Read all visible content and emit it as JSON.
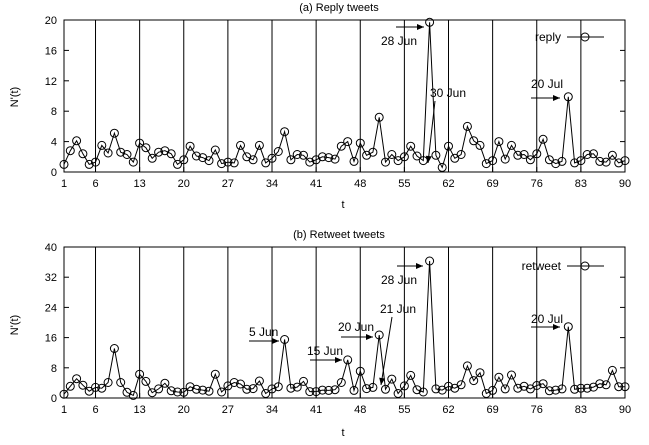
{
  "chart_data": [
    {
      "type": "line",
      "title": "(a) Reply tweets",
      "xlabel": "t",
      "ylabel": "N'(t)",
      "xlim": [
        1,
        90
      ],
      "ylim": [
        0,
        20
      ],
      "xticks": [
        1,
        6,
        13,
        20,
        27,
        34,
        41,
        48,
        55,
        62,
        69,
        76,
        83,
        90
      ],
      "yticks": [
        0,
        4,
        8,
        12,
        16,
        20
      ],
      "vlines": [
        6,
        13,
        20,
        27,
        34,
        41,
        48,
        55,
        62,
        69,
        76,
        83
      ],
      "grid": false,
      "legend": "top-right",
      "series": [
        {
          "name": "reply",
          "x": [
            1,
            2,
            3,
            4,
            5,
            6,
            7,
            8,
            9,
            10,
            11,
            12,
            13,
            14,
            15,
            16,
            17,
            18,
            19,
            20,
            21,
            22,
            23,
            24,
            25,
            26,
            27,
            28,
            29,
            30,
            31,
            32,
            33,
            34,
            35,
            36,
            37,
            38,
            39,
            40,
            41,
            42,
            43,
            44,
            45,
            46,
            47,
            48,
            49,
            50,
            51,
            52,
            53,
            54,
            55,
            56,
            57,
            58,
            59,
            60,
            61,
            62,
            63,
            64,
            65,
            66,
            67,
            68,
            69,
            70,
            71,
            72,
            73,
            74,
            75,
            76,
            77,
            78,
            79,
            80,
            81,
            82,
            83,
            84,
            85,
            86,
            87,
            88,
            89,
            90
          ],
          "y": [
            1.0,
            2.8,
            4.1,
            2.4,
            1.0,
            1.3,
            3.5,
            2.5,
            5.1,
            2.6,
            2.3,
            1.3,
            3.8,
            3.2,
            1.8,
            2.6,
            2.8,
            2.4,
            1.0,
            1.6,
            3.4,
            2.1,
            1.9,
            1.5,
            2.9,
            1.1,
            1.3,
            1.2,
            3.5,
            2.0,
            1.6,
            3.5,
            1.2,
            1.8,
            2.7,
            5.3,
            1.6,
            2.3,
            2.2,
            1.3,
            1.6,
            2.0,
            1.9,
            1.7,
            3.4,
            4.0,
            1.4,
            3.8,
            2.2,
            2.6,
            7.2,
            1.3,
            2.3,
            1.5,
            2.0,
            3.4,
            2.1,
            1.5,
            19.7,
            2.2,
            0.6,
            3.4,
            1.8,
            2.3,
            6.0,
            4.1,
            3.5,
            1.1,
            1.5,
            4.0,
            1.7,
            3.5,
            2.2,
            2.3,
            1.6,
            2.4,
            4.3,
            1.6,
            1.1,
            1.4,
            9.9,
            1.2,
            1.5,
            2.3,
            2.4,
            1.4,
            1.3,
            2.2,
            1.2,
            1.5
          ]
        }
      ],
      "annotations": [
        {
          "text": "28 Jun",
          "x": 59,
          "y": 19.7
        },
        {
          "text": "30 Jun",
          "x": 61,
          "y": 0.6
        },
        {
          "text": "20 Jul",
          "x": 81,
          "y": 9.9
        }
      ]
    },
    {
      "type": "line",
      "title": "(b) Retweet tweets",
      "xlabel": "t",
      "ylabel": "N'(t)",
      "xlim": [
        1,
        90
      ],
      "ylim": [
        0,
        40
      ],
      "xticks": [
        1,
        6,
        13,
        20,
        27,
        34,
        41,
        48,
        55,
        62,
        69,
        76,
        83,
        90
      ],
      "yticks": [
        0,
        8,
        16,
        24,
        32,
        40
      ],
      "vlines": [
        6,
        13,
        20,
        27,
        34,
        41,
        48,
        55,
        62,
        69,
        76,
        83
      ],
      "grid": false,
      "legend": "top-right",
      "series": [
        {
          "name": "retweet",
          "x": [
            1,
            2,
            3,
            4,
            5,
            6,
            7,
            8,
            9,
            10,
            11,
            12,
            13,
            14,
            15,
            16,
            17,
            18,
            19,
            20,
            21,
            22,
            23,
            24,
            25,
            26,
            27,
            28,
            29,
            30,
            31,
            32,
            33,
            34,
            35,
            36,
            37,
            38,
            39,
            40,
            41,
            42,
            43,
            44,
            45,
            46,
            47,
            48,
            49,
            50,
            51,
            52,
            53,
            54,
            55,
            56,
            57,
            58,
            59,
            60,
            61,
            62,
            63,
            64,
            65,
            66,
            67,
            68,
            69,
            70,
            71,
            72,
            73,
            74,
            75,
            76,
            77,
            78,
            79,
            80,
            81,
            82,
            83,
            84,
            85,
            86,
            87,
            88,
            89,
            90
          ],
          "y": [
            1.0,
            3.1,
            5.1,
            3.4,
            1.8,
            2.8,
            2.6,
            4.1,
            13.1,
            4.1,
            1.5,
            0.7,
            6.3,
            4.4,
            1.4,
            2.4,
            3.9,
            1.9,
            1.6,
            1.5,
            3.0,
            2.3,
            2.1,
            1.8,
            6.3,
            1.6,
            3.2,
            4.1,
            3.7,
            2.3,
            2.5,
            4.5,
            1.2,
            2.4,
            3.0,
            15.5,
            2.6,
            2.9,
            4.4,
            1.7,
            1.7,
            2.1,
            2.0,
            2.2,
            4.1,
            10.1,
            2.0,
            7.1,
            2.5,
            2.8,
            16.7,
            2.3,
            5.0,
            1.2,
            3.2,
            6.0,
            2.2,
            1.6,
            36.3,
            2.4,
            2.1,
            3.1,
            2.6,
            3.5,
            8.5,
            4.6,
            6.7,
            1.2,
            2.0,
            5.5,
            2.4,
            6.1,
            2.6,
            3.1,
            2.4,
            3.3,
            3.8,
            1.9,
            2.1,
            2.4,
            18.9,
            2.3,
            2.6,
            2.6,
            2.9,
            3.8,
            3.5,
            7.3,
            3.0,
            3.0
          ]
        }
      ],
      "annotations": [
        {
          "text": "5 Jun",
          "x": 36,
          "y": 15.5
        },
        {
          "text": "15 Jun",
          "x": 46,
          "y": 10.1
        },
        {
          "text": "20 Jun",
          "x": 51,
          "y": 16.7
        },
        {
          "text": "21 Jun",
          "x": 52,
          "y": 2.3
        },
        {
          "text": "28 Jun",
          "x": 59,
          "y": 36.3
        },
        {
          "text": "20 Jul",
          "x": 81,
          "y": 18.9
        }
      ]
    }
  ]
}
